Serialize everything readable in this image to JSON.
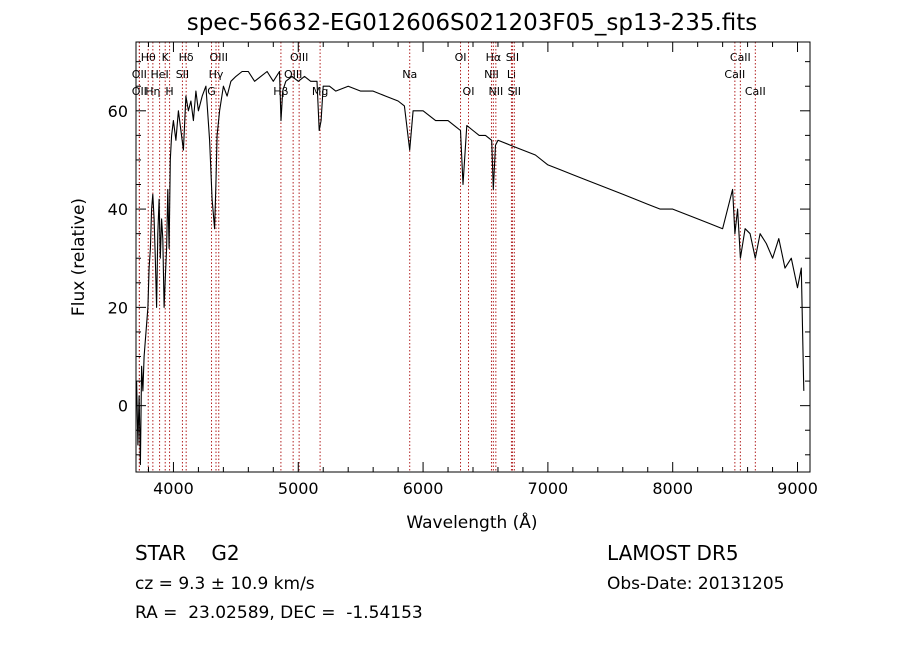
{
  "chart_data": {
    "type": "line",
    "title": "spec-56632-EG012606S021203F05_sp13-235.fits",
    "xlabel": "Wavelength (Å)",
    "ylabel": "Flux (relative)",
    "xlim": [
      3700,
      9100
    ],
    "ylim": [
      -13.5,
      74
    ],
    "xticks": [
      4000,
      5000,
      6000,
      7000,
      8000,
      9000
    ],
    "yticks": [
      0,
      20,
      40,
      60
    ],
    "grid": false,
    "legend": "none",
    "line_color": "#000000",
    "marker_color": "#b22222",
    "series": [
      {
        "x": [
          3705,
          3715,
          3725,
          3735,
          3745,
          3755,
          3765,
          3780,
          3795,
          3805,
          3815,
          3825,
          3835,
          3845,
          3855,
          3865,
          3875,
          3885,
          3895,
          3905,
          3915,
          3925,
          3935,
          3945,
          3955,
          3965,
          3975,
          3985,
          4000,
          4020,
          4040,
          4060,
          4080,
          4100,
          4120,
          4140,
          4160,
          4180,
          4200,
          4230,
          4260,
          4290,
          4310,
          4330,
          4340,
          4350,
          4370,
          4400,
          4430,
          4460,
          4500,
          4550,
          4600,
          4650,
          4700,
          4750,
          4800,
          4850,
          4862,
          4875,
          4900,
          4950,
          5000,
          5050,
          5100,
          5150,
          5168,
          5183,
          5200,
          5250,
          5300,
          5400,
          5500,
          5600,
          5700,
          5800,
          5850,
          5893,
          5920,
          6000,
          6100,
          6200,
          6300,
          6320,
          6350,
          6400,
          6450,
          6500,
          6550,
          6563,
          6580,
          6600,
          6700,
          6800,
          6900,
          7000,
          7100,
          7200,
          7300,
          7400,
          7500,
          7600,
          7700,
          7800,
          7900,
          8000,
          8100,
          8200,
          8300,
          8400,
          8480,
          8498,
          8520,
          8542,
          8580,
          8620,
          8662,
          8700,
          8750,
          8800,
          8850,
          8900,
          8950,
          9000,
          9030,
          9050
        ],
        "y": [
          5,
          -8,
          2,
          -12,
          8,
          3,
          10,
          15,
          20,
          28,
          32,
          40,
          43,
          38,
          30,
          20,
          35,
          42,
          30,
          38,
          34,
          20,
          26,
          32,
          44,
          32,
          50,
          55,
          58,
          54,
          60,
          56,
          52,
          63,
          60,
          62,
          58,
          64,
          60,
          63,
          65,
          54,
          42,
          36,
          45,
          55,
          60,
          65,
          63,
          66,
          67,
          68,
          68,
          66,
          67,
          68,
          66,
          68,
          58,
          64,
          66,
          67,
          66,
          67,
          66,
          66,
          56,
          58,
          65,
          65,
          64,
          65,
          64,
          64,
          63,
          62,
          61,
          52,
          60,
          60,
          58,
          58,
          56,
          45,
          57,
          56,
          55,
          55,
          54,
          44,
          53,
          54,
          53,
          52,
          51,
          49,
          48,
          47,
          46,
          45,
          44,
          43,
          42,
          41,
          40,
          40,
          39,
          38,
          37,
          36,
          44,
          35,
          40,
          30,
          36,
          35,
          30,
          35,
          33,
          30,
          34,
          28,
          30,
          24,
          28,
          3
        ]
      }
    ],
    "line_markers": [
      {
        "name": "Hθ",
        "x": 3798,
        "row": 1
      },
      {
        "name": "OII",
        "x": 3727,
        "row": 2
      },
      {
        "name": "OII",
        "x": 3727,
        "row": 3
      },
      {
        "name": "Hη",
        "x": 3835,
        "row": 3
      },
      {
        "name": "HeI",
        "x": 3889,
        "row": 2
      },
      {
        "name": "K",
        "x": 3934,
        "row": 1
      },
      {
        "name": "H",
        "x": 3969,
        "row": 3
      },
      {
        "name": "SII",
        "x": 4072,
        "row": 2
      },
      {
        "name": "Hδ",
        "x": 4102,
        "row": 1
      },
      {
        "name": "OIII",
        "x": 4363,
        "row": 1
      },
      {
        "name": "Hγ",
        "x": 4341,
        "row": 2
      },
      {
        "name": "G",
        "x": 4305,
        "row": 3
      },
      {
        "name": "Hβ",
        "x": 4861,
        "row": 3
      },
      {
        "name": "OIII",
        "x": 5007,
        "row": 1
      },
      {
        "name": "OIII",
        "x": 4959,
        "row": 2
      },
      {
        "name": "Mg",
        "x": 5175,
        "row": 3
      },
      {
        "name": "Na",
        "x": 5893,
        "row": 2
      },
      {
        "name": "OI",
        "x": 6300,
        "row": 1
      },
      {
        "name": "OI",
        "x": 6364,
        "row": 3
      },
      {
        "name": "Hα",
        "x": 6563,
        "row": 1
      },
      {
        "name": "NII",
        "x": 6548,
        "row": 2
      },
      {
        "name": "NII",
        "x": 6583,
        "row": 3
      },
      {
        "name": "SII",
        "x": 6716,
        "row": 1
      },
      {
        "name": "Li",
        "x": 6708,
        "row": 2
      },
      {
        "name": "SII",
        "x": 6731,
        "row": 3
      },
      {
        "name": "CaII",
        "x": 8542,
        "row": 1
      },
      {
        "name": "CaII",
        "x": 8498,
        "row": 2
      },
      {
        "name": "CaII",
        "x": 8662,
        "row": 3
      }
    ]
  },
  "info": {
    "object_class": "STAR    G2",
    "redshift": "cz = 9.3 ± 10.9 km/s",
    "coordinates": "RA =  23.02589, DEC =  -1.54153",
    "survey": "LAMOST DR5",
    "obs_date": "Obs-Date: 20131205"
  }
}
